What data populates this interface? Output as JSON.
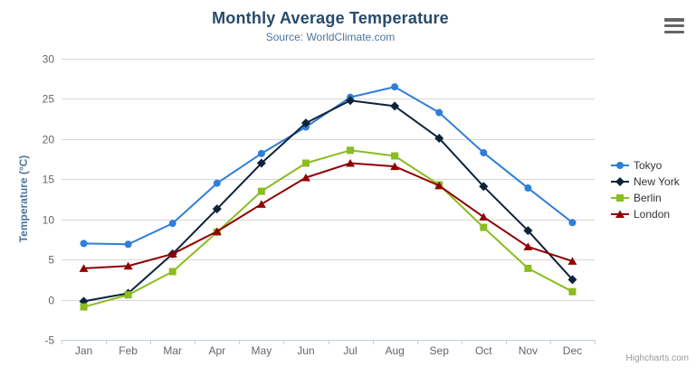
{
  "chart_data": {
    "type": "line",
    "title": "Monthly Average Temperature",
    "subtitle": "Source: WorldClimate.com",
    "xlabel": "",
    "ylabel": "Temperature (°C)",
    "ylim": [
      -5,
      30
    ],
    "y_ticks": [
      -5,
      0,
      5,
      10,
      15,
      20,
      25,
      30
    ],
    "grid": "horizontal",
    "legend_position": "right",
    "categories": [
      "Jan",
      "Feb",
      "Mar",
      "Apr",
      "May",
      "Jun",
      "Jul",
      "Aug",
      "Sep",
      "Oct",
      "Nov",
      "Dec"
    ],
    "series": [
      {
        "name": "Tokyo",
        "color": "#2f7ed8",
        "marker": "circle",
        "values": [
          7.0,
          6.9,
          9.5,
          14.5,
          18.2,
          21.5,
          25.2,
          26.5,
          23.3,
          18.3,
          13.9,
          9.6
        ]
      },
      {
        "name": "New York",
        "color": "#0d233a",
        "marker": "diamond",
        "values": [
          -0.2,
          0.8,
          5.7,
          11.3,
          17.0,
          22.0,
          24.8,
          24.1,
          20.1,
          14.1,
          8.6,
          2.5
        ]
      },
      {
        "name": "Berlin",
        "color": "#8bbc21",
        "marker": "square",
        "values": [
          -0.9,
          0.6,
          3.5,
          8.4,
          13.5,
          17.0,
          18.6,
          17.9,
          14.3,
          9.0,
          3.9,
          1.0
        ]
      },
      {
        "name": "London",
        "color": "#910000",
        "marker": "triangle",
        "values": [
          3.9,
          4.2,
          5.7,
          8.5,
          11.9,
          15.2,
          17.0,
          16.6,
          14.2,
          10.3,
          6.6,
          4.8
        ]
      }
    ]
  },
  "colors": {
    "title": "#274b6d",
    "subtitle": "#4d759e",
    "axis_labels": "#666666",
    "grid_line": "#d8d8d8",
    "x_axis_line": "#c0d0e0"
  },
  "credits": {
    "label": "Highcharts.com"
  }
}
